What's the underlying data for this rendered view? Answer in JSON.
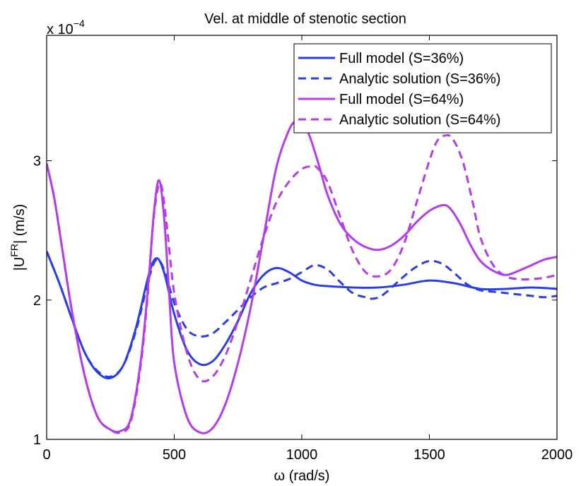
{
  "chart_data": {
    "type": "line",
    "title": "Vel. at middle of stenotic section",
    "xlabel": "ω (rad/s)",
    "ylabel_main": "|U",
    "ylabel_sup": "FR",
    "ylabel_tail": "| (m/s)",
    "y_multiplier_base": "x 10",
    "y_multiplier_exp": "−4",
    "xlim": [
      0,
      2000
    ],
    "ylim": [
      1,
      3.9
    ],
    "xticks": [
      0,
      500,
      1000,
      1500,
      2000
    ],
    "xtick_labels": [
      "0",
      "500",
      "1000",
      "1500",
      "2000"
    ],
    "yticks": [
      1,
      2,
      3
    ],
    "ytick_labels": [
      "1",
      "2",
      "3"
    ],
    "grid": false,
    "legend_position": "top-right",
    "series": [
      {
        "name": "Full model (S=36%)",
        "color": "#2b3ee6",
        "dash": "solid",
        "x": [
          0,
          50,
          100,
          150,
          200,
          250,
          300,
          350,
          400,
          430,
          460,
          500,
          550,
          600,
          650,
          700,
          750,
          800,
          850,
          900,
          950,
          1000,
          1050,
          1100,
          1200,
          1300,
          1400,
          1500,
          1600,
          1700,
          1800,
          1900,
          2000
        ],
        "y": [
          2.35,
          2.12,
          1.86,
          1.62,
          1.48,
          1.44,
          1.53,
          1.8,
          2.18,
          2.3,
          2.2,
          1.9,
          1.64,
          1.54,
          1.56,
          1.68,
          1.85,
          2.05,
          2.18,
          2.23,
          2.2,
          2.14,
          2.11,
          2.1,
          2.09,
          2.09,
          2.11,
          2.14,
          2.12,
          2.08,
          2.08,
          2.09,
          2.08
        ]
      },
      {
        "name": "Analytic solution (S=36%)",
        "color": "#2b3ee6",
        "dash": "dashed",
        "x": [
          0,
          50,
          100,
          150,
          200,
          250,
          300,
          350,
          400,
          430,
          460,
          500,
          550,
          600,
          650,
          700,
          750,
          800,
          850,
          900,
          950,
          1000,
          1050,
          1100,
          1150,
          1200,
          1250,
          1280,
          1320,
          1400,
          1450,
          1500,
          1550,
          1600,
          1650,
          1700,
          1750,
          1800,
          1850,
          1900,
          1950,
          2000
        ],
        "y": [
          2.35,
          2.12,
          1.86,
          1.62,
          1.49,
          1.45,
          1.53,
          1.78,
          2.15,
          2.29,
          2.22,
          1.98,
          1.79,
          1.74,
          1.76,
          1.84,
          1.93,
          2.02,
          2.09,
          2.12,
          2.15,
          2.2,
          2.25,
          2.22,
          2.13,
          2.05,
          2.02,
          2.01,
          2.04,
          2.17,
          2.24,
          2.28,
          2.26,
          2.19,
          2.11,
          2.07,
          2.06,
          2.05,
          2.04,
          2.03,
          2.02,
          2.03
        ]
      },
      {
        "name": "Full model (S=64%)",
        "color": "#b33de8",
        "dash": "solid",
        "x": [
          0,
          30,
          60,
          100,
          150,
          200,
          250,
          290,
          330,
          370,
          400,
          420,
          440,
          460,
          480,
          500,
          550,
          600,
          650,
          700,
          750,
          800,
          850,
          900,
          950,
          980,
          1000,
          1030,
          1070,
          1100,
          1150,
          1200,
          1250,
          1300,
          1350,
          1400,
          1450,
          1500,
          1550,
          1580,
          1620,
          1660,
          1700,
          1750,
          1800,
          1850,
          1900,
          1950,
          2000
        ],
        "y": [
          2.98,
          2.73,
          2.38,
          1.91,
          1.45,
          1.16,
          1.07,
          1.06,
          1.15,
          1.58,
          2.15,
          2.62,
          2.86,
          2.6,
          2.05,
          1.55,
          1.16,
          1.05,
          1.08,
          1.25,
          1.55,
          1.95,
          2.45,
          2.95,
          3.22,
          3.29,
          3.28,
          3.18,
          2.95,
          2.76,
          2.55,
          2.44,
          2.38,
          2.36,
          2.39,
          2.46,
          2.56,
          2.64,
          2.68,
          2.66,
          2.55,
          2.4,
          2.28,
          2.21,
          2.18,
          2.21,
          2.25,
          2.29,
          2.31
        ]
      },
      {
        "name": "Analytic solution (S=64%)",
        "color": "#b33de8",
        "dash": "dashed",
        "x": [
          0,
          30,
          60,
          100,
          150,
          200,
          250,
          290,
          330,
          370,
          400,
          420,
          445,
          470,
          500,
          550,
          600,
          650,
          700,
          750,
          800,
          850,
          900,
          950,
          1000,
          1040,
          1060,
          1100,
          1150,
          1200,
          1250,
          1300,
          1350,
          1400,
          1450,
          1500,
          1530,
          1560,
          1590,
          1630,
          1670,
          1700,
          1750,
          1800,
          1850,
          1900,
          1950,
          2000
        ],
        "y": [
          2.98,
          2.73,
          2.38,
          1.91,
          1.45,
          1.16,
          1.07,
          1.05,
          1.13,
          1.55,
          2.12,
          2.6,
          2.84,
          2.55,
          2.05,
          1.62,
          1.43,
          1.45,
          1.6,
          1.85,
          2.15,
          2.45,
          2.7,
          2.85,
          2.94,
          2.96,
          2.95,
          2.85,
          2.6,
          2.35,
          2.2,
          2.17,
          2.22,
          2.4,
          2.7,
          3.0,
          3.14,
          3.18,
          3.16,
          3.0,
          2.7,
          2.45,
          2.25,
          2.17,
          2.15,
          2.15,
          2.16,
          2.18
        ]
      }
    ]
  }
}
